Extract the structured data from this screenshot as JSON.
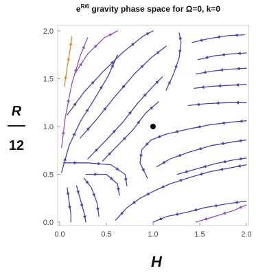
{
  "title": {
    "base": "e",
    "superscript": "R/6",
    "rest": " gravity phase space for Ω=0, k=0"
  },
  "axes": {
    "xlabel": "H",
    "ylabel_numerator": "R",
    "ylabel_denominator": "12"
  },
  "chart_data": {
    "type": "stream",
    "title": "e^(R/6) gravity phase space for Ω=0, k=0",
    "xlabel": "H",
    "ylabel": "R/12",
    "xlim": [
      0,
      2
    ],
    "ylim": [
      0,
      2
    ],
    "x_ticks": [
      "0.0",
      "0.5",
      "1.0",
      "1.5",
      "2.0"
    ],
    "y_ticks": [
      "0.0",
      "0.5",
      "1.0",
      "1.5",
      "2.0"
    ],
    "fixed_point": {
      "x": 1.0,
      "y": 1.0
    },
    "line_colors": {
      "default": "#4b3fb3",
      "slow": "#8a4fc8",
      "fast": "#e08a2e"
    },
    "streamlines": [
      {
        "points": [
          [
            0.05,
            1.42
          ],
          [
            0.08,
            1.62
          ],
          [
            0.11,
            1.8
          ],
          [
            0.13,
            1.94
          ]
        ],
        "dir": 1,
        "tone": "fast"
      },
      {
        "points": [
          [
            0.02,
            0.78
          ],
          [
            0.06,
            1.1
          ],
          [
            0.13,
            1.45
          ],
          [
            0.22,
            1.74
          ],
          [
            0.3,
            1.93
          ]
        ],
        "dir": 1,
        "tone": "slow"
      },
      {
        "points": [
          [
            0.02,
            0.52
          ],
          [
            0.1,
            0.8
          ],
          [
            0.22,
            1.05
          ],
          [
            0.38,
            1.3
          ],
          [
            0.52,
            1.53
          ],
          [
            0.62,
            1.75
          ]
        ],
        "dir": 1,
        "tone": "default"
      },
      {
        "points": [
          [
            0.16,
            1.55
          ],
          [
            0.3,
            1.76
          ],
          [
            0.48,
            1.93
          ],
          [
            0.62,
            2.0
          ]
        ],
        "dir": 1,
        "tone": "slow"
      },
      {
        "points": [
          [
            0.08,
            1.12
          ],
          [
            0.26,
            1.36
          ],
          [
            0.46,
            1.57
          ],
          [
            0.68,
            1.78
          ],
          [
            0.9,
            1.95
          ],
          [
            1.0,
            2.0
          ]
        ],
        "dir": 1,
        "tone": "default"
      },
      {
        "points": [
          [
            0.22,
            0.88
          ],
          [
            0.4,
            1.08
          ],
          [
            0.58,
            1.3
          ],
          [
            0.8,
            1.55
          ],
          [
            0.98,
            1.72
          ],
          [
            1.14,
            1.84
          ]
        ],
        "dir": 1,
        "tone": "default"
      },
      {
        "points": [
          [
            0.3,
            0.66
          ],
          [
            0.5,
            0.86
          ],
          [
            0.68,
            1.05
          ],
          [
            0.84,
            1.25
          ],
          [
            1.0,
            1.42
          ],
          [
            1.1,
            1.52
          ]
        ],
        "dir": 1,
        "tone": "default"
      },
      {
        "points": [
          [
            0.46,
            0.64
          ],
          [
            0.62,
            0.8
          ],
          [
            0.78,
            0.96
          ],
          [
            0.92,
            1.14
          ],
          [
            1.06,
            1.26
          ]
        ],
        "dir": 1,
        "tone": "default"
      },
      {
        "points": [
          [
            0.04,
            0.62
          ],
          [
            0.3,
            0.62
          ],
          [
            0.55,
            0.6
          ],
          [
            0.7,
            0.5
          ],
          [
            0.72,
            0.38
          ]
        ],
        "dir": 1,
        "tone": "default"
      },
      {
        "points": [
          [
            0.28,
            0.5
          ],
          [
            0.5,
            0.5
          ],
          [
            0.62,
            0.4
          ],
          [
            0.64,
            0.28
          ]
        ],
        "dir": 1,
        "tone": "default"
      },
      {
        "points": [
          [
            0.08,
            0.36
          ],
          [
            0.1,
            0.22
          ],
          [
            0.12,
            0.08
          ],
          [
            0.12,
            0.0
          ]
        ],
        "dir": 1,
        "tone": "default"
      },
      {
        "points": [
          [
            0.18,
            0.38
          ],
          [
            0.22,
            0.24
          ],
          [
            0.26,
            0.1
          ],
          [
            0.28,
            0.0
          ]
        ],
        "dir": 1,
        "tone": "default"
      },
      {
        "points": [
          [
            0.26,
            0.46
          ],
          [
            0.34,
            0.36
          ],
          [
            0.4,
            0.2
          ],
          [
            0.42,
            0.06
          ]
        ],
        "dir": 1,
        "tone": "default"
      },
      {
        "points": [
          [
            0.6,
            0.02
          ],
          [
            0.72,
            0.15
          ],
          [
            0.86,
            0.25
          ],
          [
            1.02,
            0.33
          ],
          [
            1.18,
            0.4
          ],
          [
            1.4,
            0.47
          ],
          [
            1.62,
            0.53
          ],
          [
            1.84,
            0.57
          ],
          [
            2.0,
            0.6
          ]
        ],
        "dir": -1,
        "tone": "default"
      },
      {
        "points": [
          [
            1.0,
            0.0
          ],
          [
            1.15,
            0.06
          ],
          [
            1.35,
            0.1
          ],
          [
            1.55,
            0.15
          ],
          [
            1.78,
            0.19
          ],
          [
            2.0,
            0.22
          ]
        ],
        "dir": -1,
        "tone": "default"
      },
      {
        "points": [
          [
            1.46,
            0.0
          ],
          [
            1.66,
            0.06
          ],
          [
            1.86,
            0.12
          ],
          [
            2.0,
            0.18
          ]
        ],
        "dir": -1,
        "tone": "slow"
      },
      {
        "points": [
          [
            0.94,
            0.46
          ],
          [
            0.86,
            0.62
          ],
          [
            0.88,
            0.76
          ],
          [
            0.98,
            0.86
          ],
          [
            1.14,
            0.92
          ],
          [
            1.36,
            0.97
          ],
          [
            1.62,
            1.02
          ],
          [
            1.88,
            1.05
          ],
          [
            2.0,
            1.06
          ]
        ],
        "dir": -1,
        "tone": "default"
      },
      {
        "points": [
          [
            1.04,
            0.58
          ],
          [
            1.18,
            0.66
          ],
          [
            1.38,
            0.73
          ],
          [
            1.62,
            0.8
          ],
          [
            1.86,
            0.84
          ],
          [
            2.0,
            0.86
          ]
        ],
        "dir": -1,
        "tone": "default"
      },
      {
        "points": [
          [
            1.26,
            0.5
          ],
          [
            1.44,
            0.55
          ],
          [
            1.66,
            0.61
          ],
          [
            1.86,
            0.65
          ],
          [
            2.0,
            0.67
          ]
        ],
        "dir": -1,
        "tone": "default"
      },
      {
        "points": [
          [
            1.14,
            1.38
          ],
          [
            1.22,
            1.55
          ],
          [
            1.28,
            1.72
          ],
          [
            1.3,
            1.88
          ],
          [
            1.28,
            1.98
          ]
        ],
        "dir": 1,
        "tone": "default"
      },
      {
        "points": [
          [
            1.42,
            1.88
          ],
          [
            1.6,
            1.92
          ],
          [
            1.8,
            1.95
          ],
          [
            1.98,
            1.96
          ]
        ],
        "dir": -1,
        "tone": "default"
      },
      {
        "points": [
          [
            1.48,
            1.7
          ],
          [
            1.66,
            1.74
          ],
          [
            1.84,
            1.76
          ],
          [
            2.0,
            1.77
          ]
        ],
        "dir": -1,
        "tone": "default"
      },
      {
        "points": [
          [
            1.46,
            1.55
          ],
          [
            1.64,
            1.58
          ],
          [
            1.82,
            1.6
          ],
          [
            2.0,
            1.61
          ]
        ],
        "dir": -1,
        "tone": "default"
      },
      {
        "points": [
          [
            1.44,
            1.4
          ],
          [
            1.62,
            1.42
          ],
          [
            1.8,
            1.43
          ],
          [
            2.0,
            1.44
          ]
        ],
        "dir": -1,
        "tone": "default"
      },
      {
        "points": [
          [
            1.38,
            1.22
          ],
          [
            1.58,
            1.24
          ],
          [
            1.8,
            1.25
          ],
          [
            2.0,
            1.25
          ]
        ],
        "dir": -1,
        "tone": "default"
      }
    ]
  }
}
